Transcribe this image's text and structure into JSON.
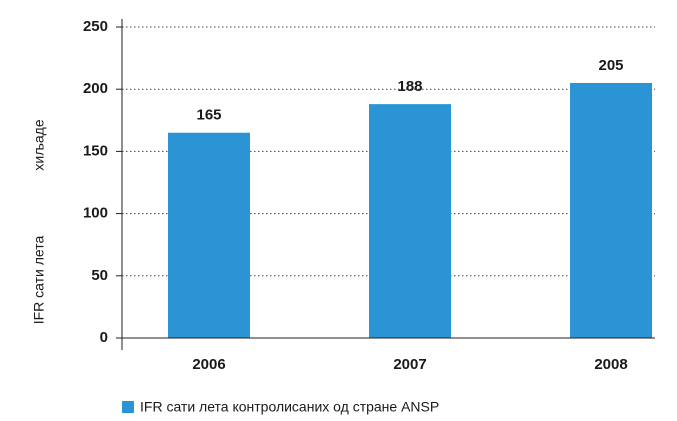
{
  "chart_data": {
    "type": "bar",
    "y_label": "IFR сати лета",
    "y_label_unit": "хиљаде",
    "categories": [
      "2006",
      "2007",
      "2008"
    ],
    "series": [
      {
        "name": "IFR сати лета контролисаних од стране ANSP",
        "color": "#2b94d4",
        "values": [
          165,
          188,
          205
        ]
      }
    ],
    "ylim": [
      0,
      250
    ],
    "yticks": [
      0,
      50,
      100,
      150,
      200,
      250
    ],
    "grid": true,
    "legend": "bottom-left"
  }
}
